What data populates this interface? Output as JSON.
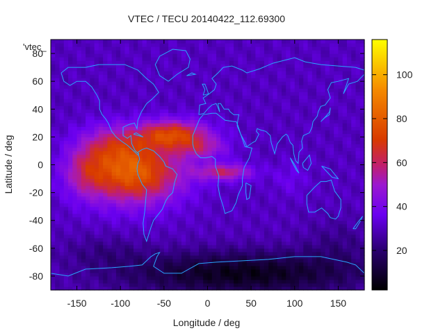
{
  "chart_data": {
    "type": "heatmap",
    "title": "VTEC / TECU 20140422_112.69300",
    "xlabel": "Longitude / deg",
    "ylabel": "Latitude / deg",
    "key_label": "'vtec_",
    "xlim": [
      -180,
      180
    ],
    "ylim": [
      -90,
      90
    ],
    "x_ticks": [
      -150,
      -100,
      -50,
      0,
      50,
      100,
      150
    ],
    "y_ticks": [
      -80,
      -60,
      -40,
      -20,
      0,
      20,
      40,
      60,
      80
    ],
    "colorbar": {
      "range": [
        2,
        116
      ],
      "ticks": [
        20,
        40,
        60,
        80,
        100
      ]
    },
    "grid": false,
    "overlay": "coastlines",
    "colors": {
      "coastline": "#2aa6ff",
      "text": "#222222"
    }
  }
}
